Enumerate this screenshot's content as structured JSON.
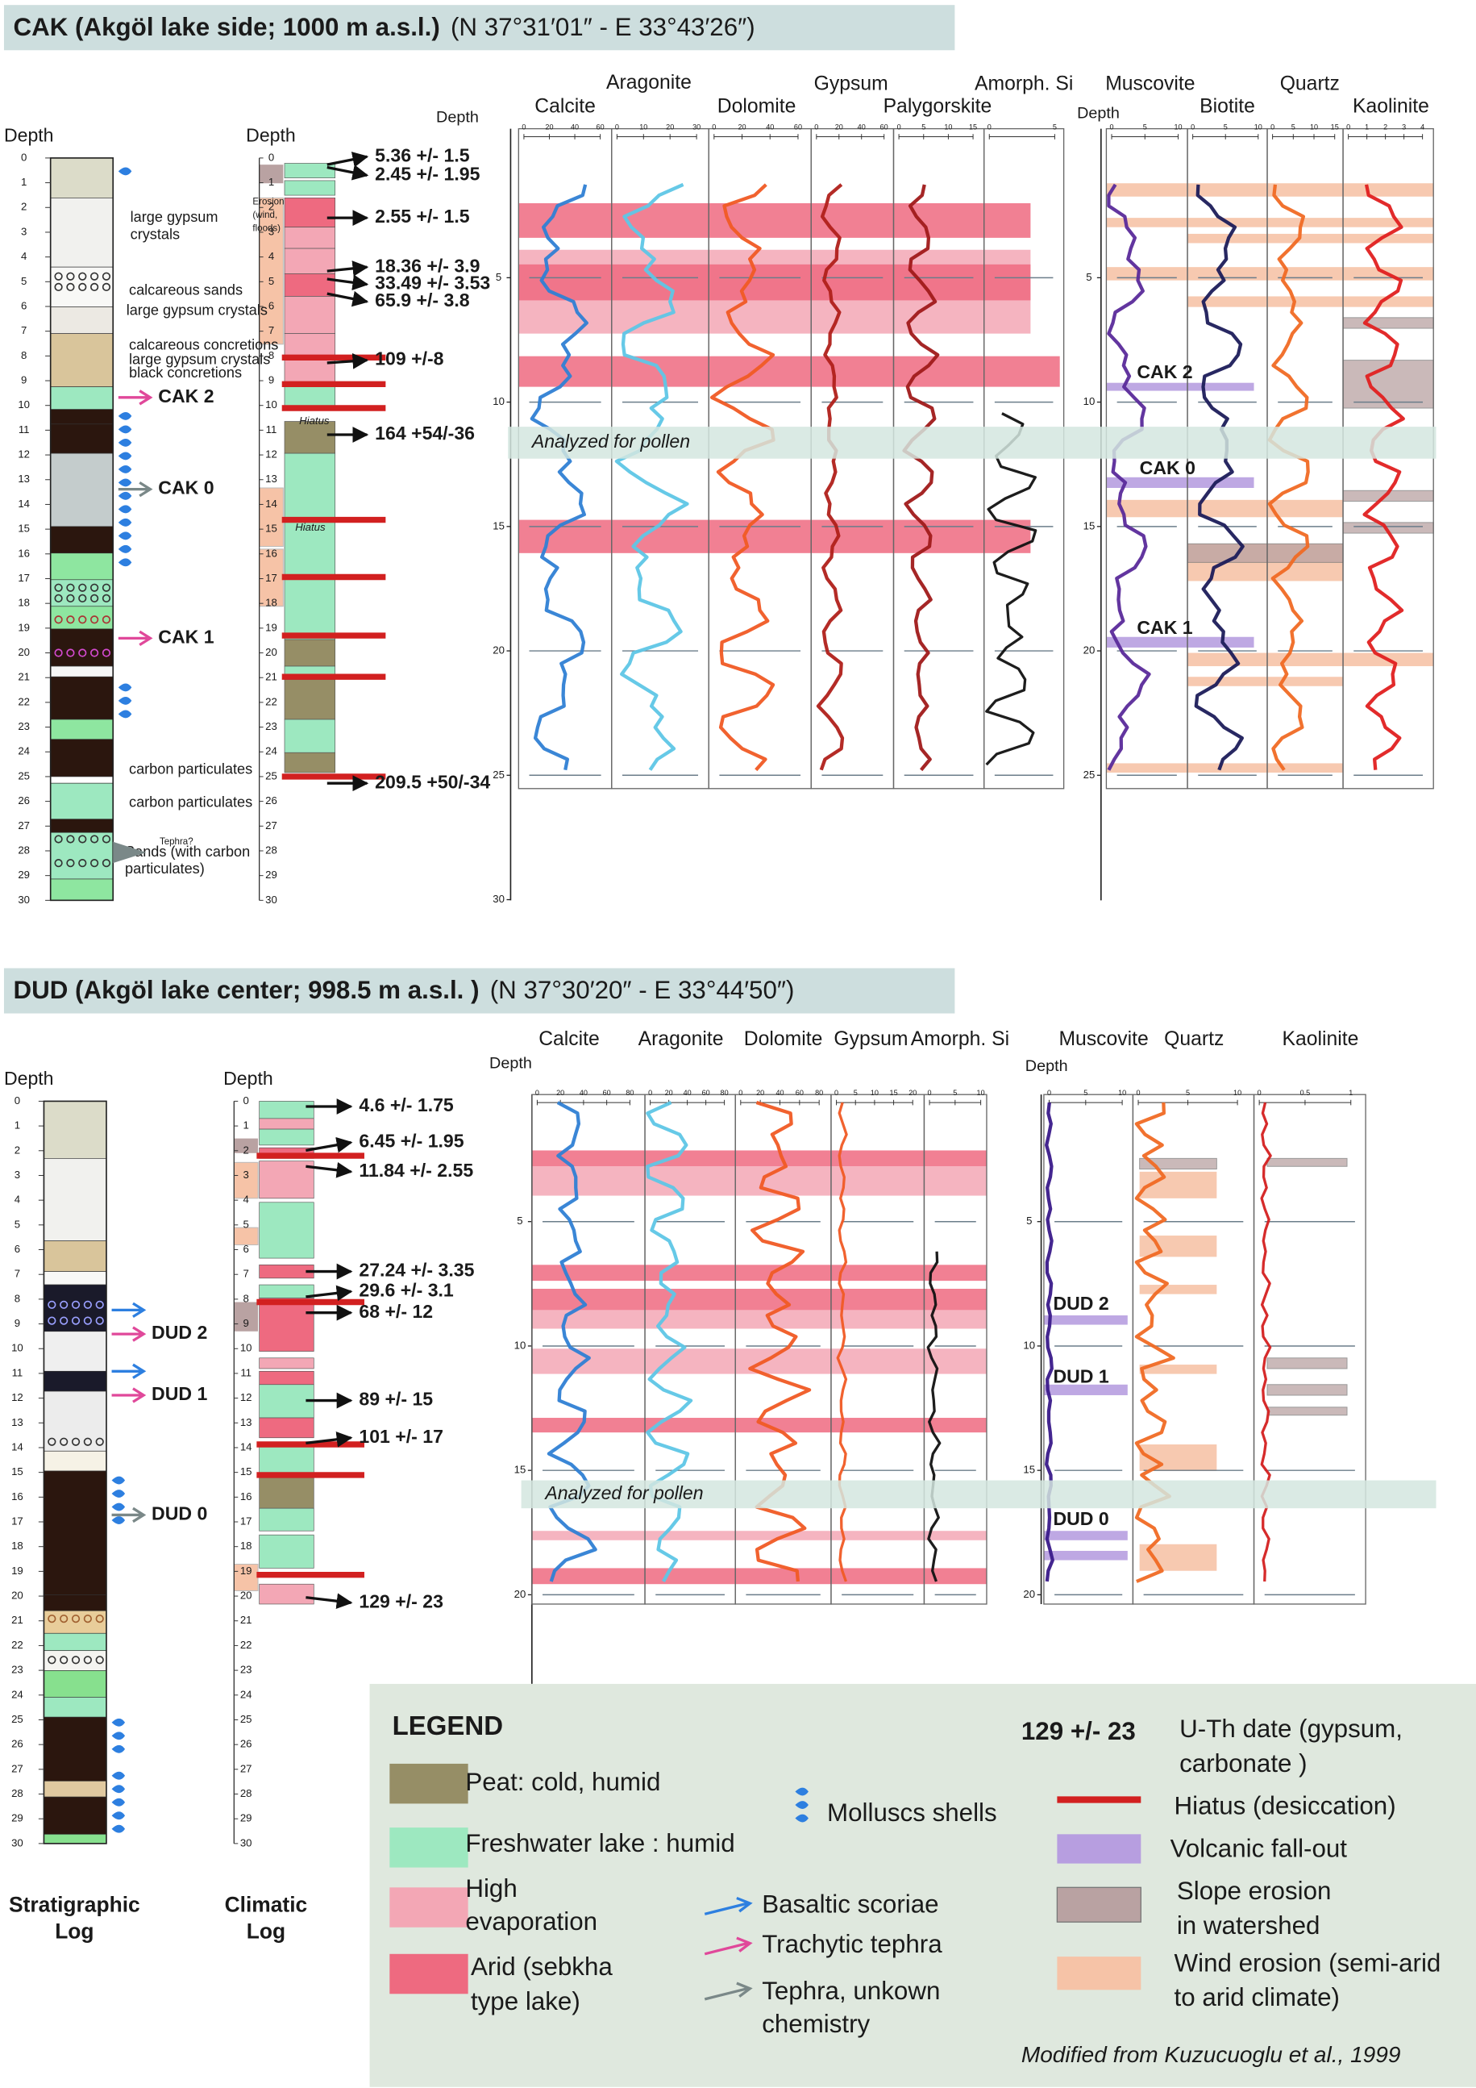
{
  "depth_ticks": [
    0,
    1,
    2,
    3,
    4,
    5,
    6,
    7,
    8,
    9,
    10,
    11,
    12,
    13,
    14,
    15,
    16,
    17,
    18,
    19,
    20,
    21,
    22,
    23,
    24,
    25,
    26,
    27,
    28,
    29,
    30
  ],
  "cak": {
    "title": "CAK (Akgöl lake side; 1000 m a.s.l.)",
    "coords": "(N 37°31′01″ - E 33°43′26″)",
    "strat_depth_label": "Depth",
    "climatic_depth_label": "Depth",
    "mineral_depth_label": "Depth",
    "mineral_depth_label_2": "Depth",
    "minerals": [
      {
        "name": "Calcite",
        "scale": [
          0,
          20,
          40,
          60
        ]
      },
      {
        "name": "Aragonite",
        "scale": [
          0,
          10,
          20,
          30
        ]
      },
      {
        "name": "Dolomite",
        "scale": [
          0,
          20,
          40,
          60
        ]
      },
      {
        "name": "Gypsum",
        "scale": [
          0,
          20,
          40,
          60
        ]
      },
      {
        "name": "Palygorskite",
        "scale": [
          0,
          5,
          10,
          15
        ]
      },
      {
        "name": "Amorph. Si",
        "scale": [
          0,
          5
        ]
      }
    ],
    "minerals_2": [
      {
        "name": "Muscovite",
        "scale": [
          0,
          5,
          10
        ]
      },
      {
        "name": "Biotite",
        "scale": [
          0,
          5,
          10
        ]
      },
      {
        "name": "Quartz",
        "scale": [
          0,
          5,
          10,
          15
        ]
      },
      {
        "name": "Kaolinite",
        "scale": [
          0,
          1,
          2,
          3,
          4
        ]
      }
    ],
    "mineral_depth_ticks": [
      5,
      10,
      15,
      20,
      25,
      30
    ],
    "mineral_depth_ticks_2": [
      5,
      10,
      15,
      20,
      25
    ],
    "dates": [
      "5.36 +/- 1.5",
      "2.45 +/- 1.95",
      "2.55 +/- 1.5",
      "18.36 +/- 3.9",
      "33.49 +/- 3.53",
      "65.9 +/- 3.8",
      "109 +/-8",
      "164 +54/-36",
      "209.5 +50/-34"
    ],
    "annotations": [
      "large gypsum",
      "crystals",
      "Erosion",
      "(wind,",
      "floods)",
      "calcareous sands",
      "large gypsum crystals",
      "calcareous concretions",
      "large gypsum crystals",
      "black concretions",
      "carbon particulates",
      "carbon particulates",
      "Tephra?",
      "Sands (with carbon",
      "particulates)"
    ],
    "tephra_labels": [
      "CAK 2",
      "CAK 0",
      "CAK 1"
    ],
    "mineral_tephra_labels": [
      "CAK 2",
      "CAK 0",
      "CAK 1"
    ],
    "hiatus_labels": [
      "Hiatus",
      "Hiatus"
    ],
    "pollen_label": "Analyzed for pollen"
  },
  "dud": {
    "title": "DUD (Akgöl lake center; 998.5 m a.s.l. )",
    "coords": "(N 37°30′20″ - E 33°44′50″)",
    "strat_depth_label": "Depth",
    "climatic_depth_label": "Depth",
    "mineral_depth_label": "Depth",
    "mineral_depth_label_2": "Depth",
    "minerals": [
      {
        "name": "Calcite",
        "scale": [
          0,
          20,
          40,
          60,
          80
        ]
      },
      {
        "name": "Aragonite",
        "scale": [
          0,
          20,
          40,
          60,
          80
        ]
      },
      {
        "name": "Dolomite",
        "scale": [
          0,
          20,
          40,
          60,
          80
        ]
      },
      {
        "name": "Gypsum",
        "scale": [
          0,
          5,
          10,
          15,
          20
        ]
      },
      {
        "name": "Amorph. Si",
        "scale": [
          0,
          5,
          10
        ]
      }
    ],
    "minerals_2": [
      {
        "name": "Muscovite",
        "scale": [
          0,
          5,
          10
        ]
      },
      {
        "name": "Quartz",
        "scale": [
          0,
          5,
          10
        ]
      },
      {
        "name": "Kaolinite",
        "scale": [
          0,
          0.5,
          1
        ]
      }
    ],
    "mineral_depth_ticks": [
      5,
      10,
      15,
      20
    ],
    "mineral_depth_ticks_2": [
      5,
      10,
      15,
      20
    ],
    "dates": [
      "4.6 +/- 1.75",
      "6.45 +/- 1.95",
      "11.84 +/- 2.55",
      "27.24 +/- 3.35",
      "29.6 +/- 3.1",
      "68 +/- 12",
      "89 +/- 15",
      "101 +/- 17",
      "129 +/- 23"
    ],
    "tephra_labels": [
      "DUD 2",
      "DUD 1",
      "DUD 0"
    ],
    "mineral_tephra_labels": [
      "DUD 2",
      "DUD 1",
      "DUD 0"
    ],
    "pollen_label": "Analyzed for pollen"
  },
  "footer": {
    "strat_log": [
      "Stratigraphic",
      "Log"
    ],
    "climatic_log": [
      "Climatic",
      "Log"
    ]
  },
  "legend": {
    "title": "LEGEND",
    "peat": "Peat: cold, humid",
    "freshwater": "Freshwater lake : humid",
    "high_evaporation": [
      "High",
      "evaporation"
    ],
    "arid": [
      "Arid (sebkha",
      "type lake)"
    ],
    "molluscs": "Molluscs shells",
    "basaltic": "Basaltic scoriae",
    "trachytic": "Trachytic tephra",
    "tephra_unknown": [
      "Tephra, unkown",
      "chemistry"
    ],
    "date_example": "129 +/- 23",
    "date_text": [
      "U-Th date (gypsum,",
      "carbonate )"
    ],
    "hiatus": "Hiatus (desiccation)",
    "volcanic": "Volcanic fall-out",
    "slope": [
      "Slope erosion",
      "in watershed"
    ],
    "wind": [
      "Wind erosion (semi-arid",
      "to arid climate)"
    ],
    "source": "Modified from Kuzucuoglu et al., 1999"
  }
}
